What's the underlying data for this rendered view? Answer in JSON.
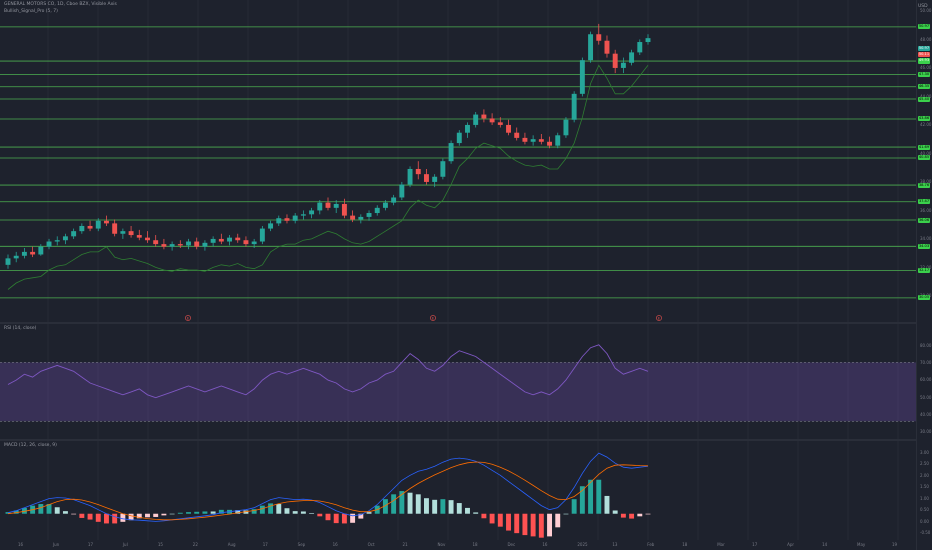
{
  "header": {
    "symbol_line": "GENERAL MOTORS CO, 1D, Cboe BZX, Visible Axis",
    "indicator_line": "Bullish_Signal_Pro (5, 7)",
    "rsi_title": "RSI (14, close)",
    "macd_title": "MACD (12, 26, close, 9)",
    "currency": "USD"
  },
  "colors": {
    "background": "#1e222d",
    "up_candle": "#26a69a",
    "down_candle": "#ef5350",
    "level_line": "#4caf50",
    "level_tag": "#3bd14c",
    "rsi_band": "#7e57c2",
    "macd_line": "#2962ff",
    "signal_line": "#ff6d00"
  },
  "price_axis": {
    "labels": [
      "50.00",
      "48.00",
      "46.00",
      "44.00",
      "42.00",
      "40.00",
      "38.00",
      "36.00",
      "34.00",
      "32.00",
      "30.00"
    ],
    "current_tags": [
      {
        "text": "50.97",
        "color": "#26a69a"
      },
      {
        "text": "50.11",
        "color": "#ef5350"
      },
      {
        "text": "49.93",
        "color": "#3bd14c"
      }
    ],
    "level_tags": [
      "50.97",
      "48.33",
      "47.30",
      "46.35",
      "45.40",
      "43.86",
      "41.69",
      "40.85",
      "38.76",
      "37.47",
      "36.06",
      "34.03",
      "32.17",
      "30.05"
    ]
  },
  "rsi_axis": {
    "labels": [
      "80.00",
      "70.00",
      "60.00",
      "50.00",
      "40.00",
      "30.00"
    ]
  },
  "macd_axis": {
    "labels": [
      "3.00",
      "2.50",
      "2.00",
      "1.50",
      "1.00",
      "0.50",
      "0.00",
      "-0.50"
    ]
  },
  "time_axis": {
    "labels": [
      "16",
      "Jun",
      "17",
      "Jul",
      "15",
      "22",
      "Aug",
      "17",
      "Sep",
      "16",
      "Oct",
      "21",
      "Nov",
      "18",
      "Dec",
      "16",
      "2025",
      "13",
      "Feb",
      "18",
      "Mar",
      "17",
      "Apr",
      "14",
      "May",
      "19"
    ]
  },
  "events": [
    "E",
    "E",
    "E"
  ],
  "chart_data": {
    "type": "candlestick",
    "price_range": [
      29.5,
      51.5
    ],
    "levels": [
      50.97,
      48.33,
      47.3,
      46.35,
      45.4,
      43.86,
      41.69,
      40.85,
      38.76,
      37.47,
      36.06,
      34.03,
      32.17,
      30.05
    ],
    "candles": [
      [
        32.6,
        33.4,
        32.3,
        33.1
      ],
      [
        33.1,
        33.6,
        32.8,
        33.3
      ],
      [
        33.3,
        33.9,
        33.1,
        33.6
      ],
      [
        33.6,
        34.0,
        33.2,
        33.4
      ],
      [
        33.4,
        34.2,
        33.3,
        34.0
      ],
      [
        34.0,
        34.6,
        33.8,
        34.4
      ],
      [
        34.4,
        34.8,
        34.1,
        34.5
      ],
      [
        34.5,
        35.0,
        34.2,
        34.8
      ],
      [
        34.8,
        35.4,
        34.6,
        35.2
      ],
      [
        35.2,
        35.8,
        35.0,
        35.6
      ],
      [
        35.6,
        36.0,
        35.2,
        35.4
      ],
      [
        35.4,
        36.2,
        35.2,
        36.0
      ],
      [
        36.0,
        36.4,
        35.6,
        35.8
      ],
      [
        35.8,
        36.1,
        34.8,
        35.0
      ],
      [
        35.0,
        35.4,
        34.6,
        35.2
      ],
      [
        35.2,
        35.6,
        34.7,
        34.9
      ],
      [
        34.9,
        35.3,
        34.5,
        34.7
      ],
      [
        34.7,
        35.2,
        34.3,
        34.5
      ],
      [
        34.5,
        34.9,
        34.0,
        34.2
      ],
      [
        34.2,
        34.6,
        33.8,
        34.0
      ],
      [
        34.0,
        34.4,
        33.7,
        34.2
      ],
      [
        34.2,
        34.5,
        33.9,
        34.1
      ],
      [
        34.1,
        34.6,
        33.8,
        34.4
      ],
      [
        34.4,
        34.7,
        33.8,
        34.0
      ],
      [
        34.0,
        34.5,
        33.7,
        34.3
      ],
      [
        34.3,
        34.8,
        34.0,
        34.6
      ],
      [
        34.6,
        35.0,
        34.2,
        34.4
      ],
      [
        34.4,
        34.9,
        34.1,
        34.7
      ],
      [
        34.7,
        35.0,
        34.3,
        34.5
      ],
      [
        34.5,
        34.8,
        34.0,
        34.2
      ],
      [
        34.2,
        34.6,
        33.9,
        34.4
      ],
      [
        34.4,
        35.6,
        34.2,
        35.4
      ],
      [
        35.4,
        36.0,
        35.2,
        35.8
      ],
      [
        35.8,
        36.4,
        35.6,
        36.2
      ],
      [
        36.2,
        36.5,
        35.8,
        36.0
      ],
      [
        36.0,
        36.6,
        35.8,
        36.4
      ],
      [
        36.4,
        36.8,
        36.1,
        36.5
      ],
      [
        36.5,
        37.0,
        36.2,
        36.8
      ],
      [
        36.8,
        37.6,
        36.5,
        37.4
      ],
      [
        37.4,
        37.8,
        36.8,
        37.0
      ],
      [
        37.0,
        37.6,
        36.6,
        37.3
      ],
      [
        37.3,
        37.7,
        36.2,
        36.4
      ],
      [
        36.4,
        36.8,
        35.9,
        36.1
      ],
      [
        36.1,
        36.5,
        35.8,
        36.3
      ],
      [
        36.3,
        36.8,
        36.0,
        36.6
      ],
      [
        36.6,
        37.2,
        36.4,
        37.0
      ],
      [
        37.0,
        37.6,
        36.8,
        37.4
      ],
      [
        37.4,
        38.0,
        37.2,
        37.8
      ],
      [
        37.8,
        39.0,
        37.6,
        38.8
      ],
      [
        38.8,
        40.2,
        38.6,
        40.0
      ],
      [
        40.0,
        40.6,
        39.2,
        39.6
      ],
      [
        39.6,
        40.0,
        38.8,
        39.0
      ],
      [
        39.0,
        39.6,
        38.6,
        39.4
      ],
      [
        39.4,
        40.8,
        39.2,
        40.6
      ],
      [
        40.6,
        42.2,
        40.4,
        42.0
      ],
      [
        42.0,
        43.0,
        41.8,
        42.8
      ],
      [
        42.8,
        43.6,
        42.4,
        43.4
      ],
      [
        43.4,
        44.4,
        43.2,
        44.2
      ],
      [
        44.2,
        44.6,
        43.6,
        43.9
      ],
      [
        43.9,
        44.3,
        43.4,
        43.6
      ],
      [
        43.6,
        44.0,
        43.2,
        43.4
      ],
      [
        43.4,
        43.8,
        42.6,
        42.8
      ],
      [
        42.8,
        43.2,
        42.2,
        42.4
      ],
      [
        42.4,
        42.8,
        41.9,
        42.1
      ],
      [
        42.1,
        42.6,
        41.8,
        42.3
      ],
      [
        42.3,
        42.7,
        41.9,
        42.1
      ],
      [
        42.1,
        42.5,
        41.6,
        41.8
      ],
      [
        41.8,
        42.8,
        41.6,
        42.6
      ],
      [
        42.6,
        44.0,
        42.4,
        43.8
      ],
      [
        43.8,
        46.0,
        43.6,
        45.8
      ],
      [
        45.8,
        48.6,
        45.6,
        48.4
      ],
      [
        48.4,
        50.6,
        48.2,
        50.4
      ],
      [
        50.4,
        51.2,
        49.6,
        49.9
      ],
      [
        49.9,
        50.3,
        48.6,
        48.9
      ],
      [
        48.9,
        49.2,
        47.4,
        47.8
      ],
      [
        47.8,
        48.6,
        47.4,
        48.2
      ],
      [
        48.2,
        49.2,
        48.0,
        49.0
      ],
      [
        49.0,
        50.0,
        48.8,
        49.8
      ],
      [
        49.8,
        50.4,
        49.6,
        50.1
      ]
    ],
    "rsi_values": [
      55,
      58,
      62,
      60,
      64,
      66,
      68,
      66,
      64,
      60,
      56,
      54,
      52,
      50,
      48,
      50,
      52,
      48,
      46,
      48,
      50,
      52,
      54,
      52,
      50,
      52,
      54,
      52,
      50,
      48,
      52,
      58,
      62,
      64,
      62,
      64,
      66,
      64,
      62,
      58,
      56,
      52,
      50,
      52,
      56,
      58,
      62,
      64,
      70,
      76,
      72,
      66,
      64,
      68,
      74,
      78,
      76,
      74,
      70,
      66,
      62,
      58,
      54,
      50,
      48,
      50,
      48,
      52,
      58,
      66,
      74,
      80,
      82,
      76,
      66,
      62,
      64,
      66,
      64
    ],
    "macd_values": [
      0.05,
      0.15,
      0.3,
      0.45,
      0.6,
      0.75,
      0.8,
      0.78,
      0.7,
      0.55,
      0.4,
      0.2,
      0.0,
      -0.15,
      -0.25,
      -0.3,
      -0.32,
      -0.35,
      -0.38,
      -0.35,
      -0.3,
      -0.25,
      -0.2,
      -0.15,
      -0.1,
      -0.05,
      0.05,
      0.1,
      0.15,
      0.2,
      0.3,
      0.5,
      0.7,
      0.8,
      0.75,
      0.7,
      0.72,
      0.68,
      0.55,
      0.35,
      0.15,
      0.0,
      -0.1,
      -0.05,
      0.15,
      0.45,
      0.85,
      1.25,
      1.65,
      1.9,
      2.1,
      2.2,
      2.35,
      2.55,
      2.7,
      2.75,
      2.7,
      2.6,
      2.4,
      2.15,
      1.9,
      1.6,
      1.3,
      1.0,
      0.7,
      0.4,
      0.2,
      0.3,
      0.7,
      1.3,
      2.0,
      2.6,
      3.0,
      2.8,
      2.5,
      2.3,
      2.25,
      2.3,
      2.35
    ],
    "signal_values": [
      0.0,
      0.05,
      0.12,
      0.2,
      0.3,
      0.45,
      0.6,
      0.7,
      0.72,
      0.68,
      0.58,
      0.45,
      0.3,
      0.15,
      0.0,
      -0.1,
      -0.18,
      -0.24,
      -0.28,
      -0.3,
      -0.3,
      -0.28,
      -0.25,
      -0.21,
      -0.17,
      -0.12,
      -0.07,
      -0.02,
      0.04,
      0.1,
      0.16,
      0.25,
      0.38,
      0.5,
      0.58,
      0.62,
      0.65,
      0.66,
      0.63,
      0.55,
      0.44,
      0.3,
      0.18,
      0.1,
      0.1,
      0.2,
      0.4,
      0.65,
      0.95,
      1.25,
      1.5,
      1.72,
      1.92,
      2.1,
      2.28,
      2.42,
      2.52,
      2.56,
      2.54,
      2.45,
      2.3,
      2.12,
      1.9,
      1.66,
      1.4,
      1.14,
      0.9,
      0.72,
      0.7,
      0.85,
      1.15,
      1.55,
      1.95,
      2.25,
      2.4,
      2.42,
      2.4,
      2.38,
      2.37
    ]
  }
}
